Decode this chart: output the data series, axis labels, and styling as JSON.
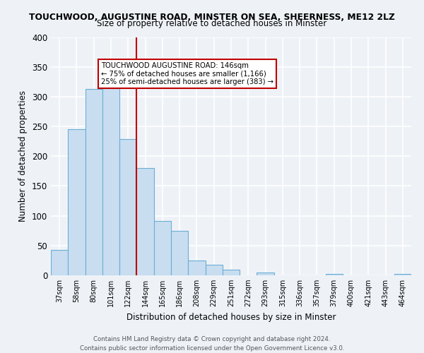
{
  "title": "TOUCHWOOD, AUGUSTINE ROAD, MINSTER ON SEA, SHEERNESS, ME12 2LZ",
  "subtitle": "Size of property relative to detached houses in Minster",
  "xlabel": "Distribution of detached houses by size in Minster",
  "ylabel": "Number of detached properties",
  "bin_labels": [
    "37sqm",
    "58sqm",
    "80sqm",
    "101sqm",
    "122sqm",
    "144sqm",
    "165sqm",
    "186sqm",
    "208sqm",
    "229sqm",
    "251sqm",
    "272sqm",
    "293sqm",
    "315sqm",
    "336sqm",
    "357sqm",
    "379sqm",
    "400sqm",
    "421sqm",
    "443sqm",
    "464sqm"
  ],
  "bar_values": [
    43,
    245,
    313,
    333,
    229,
    180,
    91,
    75,
    25,
    18,
    10,
    0,
    5,
    0,
    0,
    0,
    2,
    0,
    0,
    0,
    2
  ],
  "bar_color": "#c9ddf0",
  "bar_edge_color": "#6aaed6",
  "marker_line_color": "#c00000",
  "annotation_line1": "TOUCHWOOD AUGUSTINE ROAD: 146sqm",
  "annotation_line2": "← 75% of detached houses are smaller (1,166)",
  "annotation_line3": "25% of semi-detached houses are larger (383) →",
  "ylim": [
    0,
    400
  ],
  "yticks": [
    0,
    50,
    100,
    150,
    200,
    250,
    300,
    350,
    400
  ],
  "footer1": "Contains HM Land Registry data © Crown copyright and database right 2024.",
  "footer2": "Contains public sector information licensed under the Open Government Licence v3.0.",
  "bg_color": "#eef2f7",
  "plot_bg_color": "#eef2f7"
}
